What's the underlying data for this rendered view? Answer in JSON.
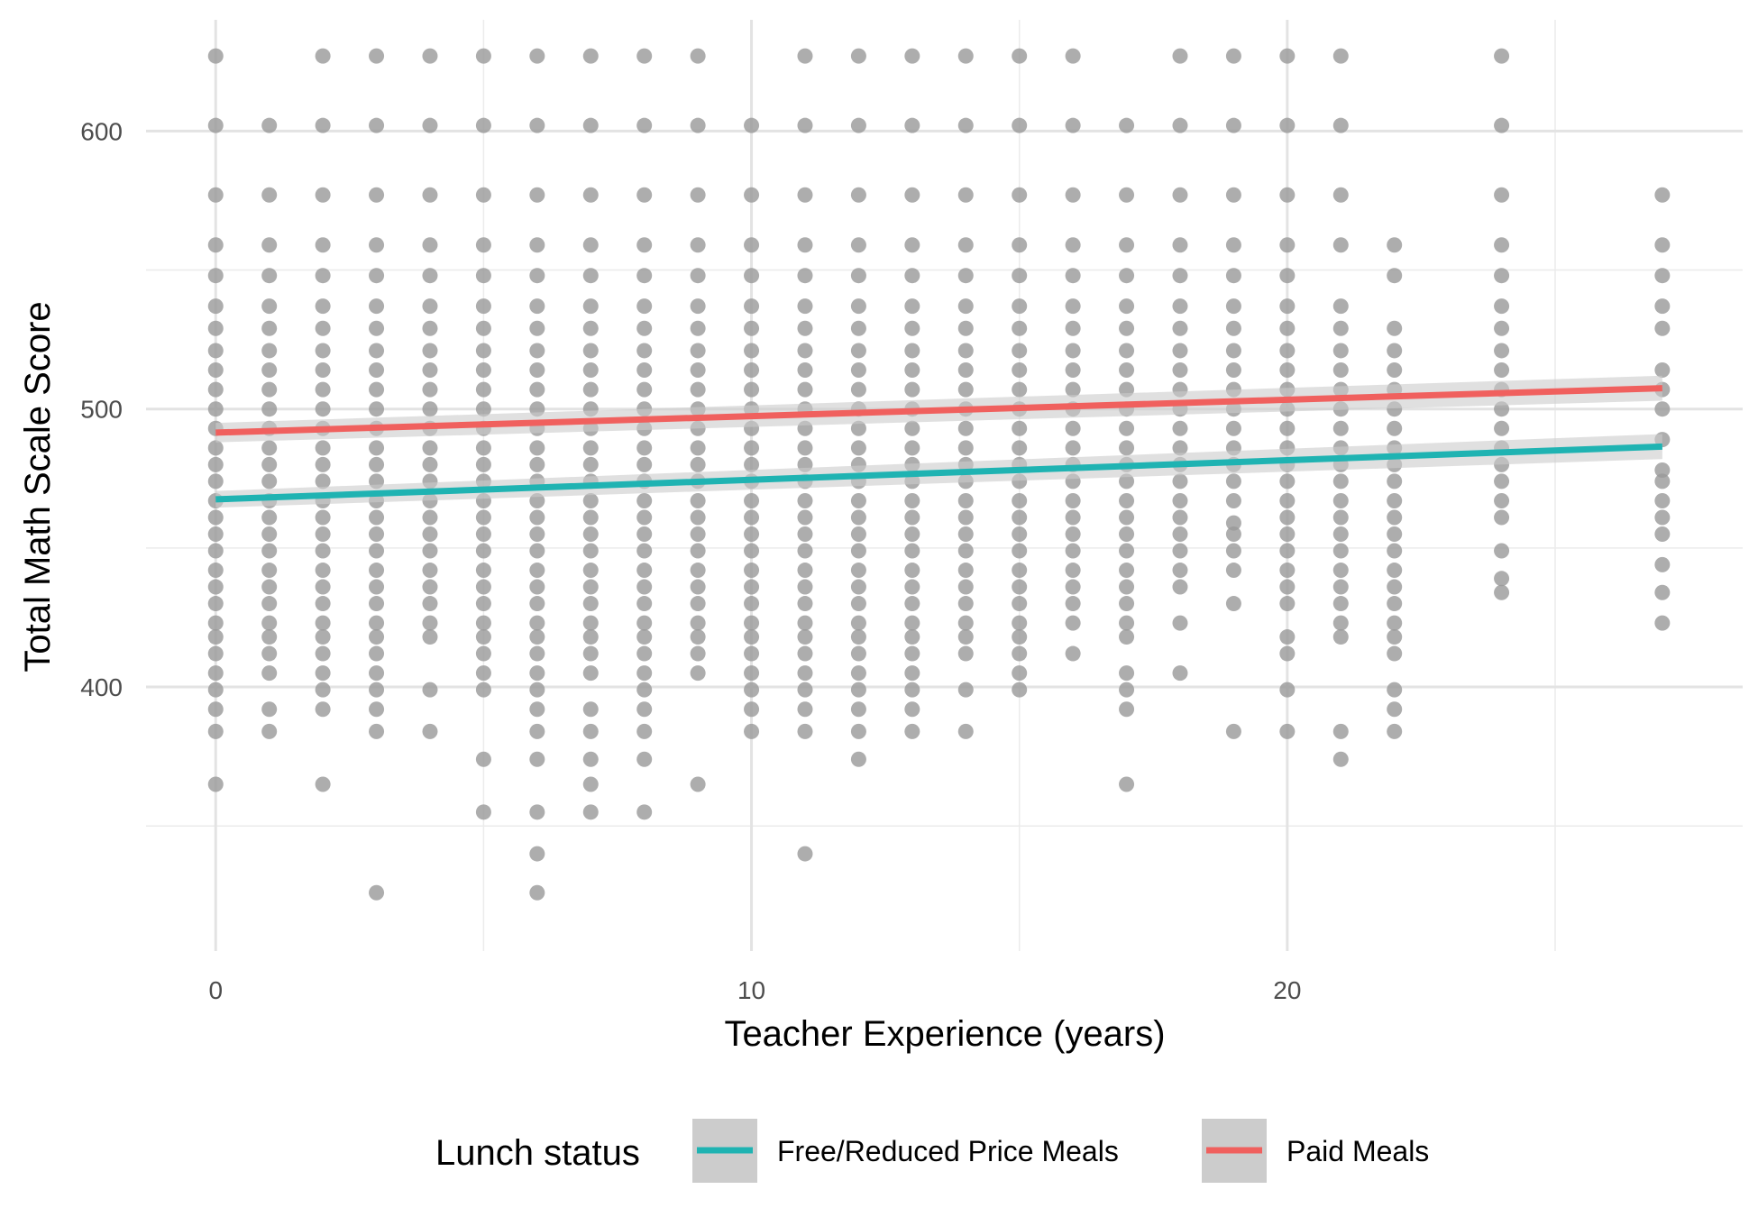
{
  "chart_data": {
    "type": "scatter",
    "title": "",
    "xlabel": "Teacher Experience (years)",
    "ylabel": "Total Math Scale Score",
    "xlim": [
      -1.3,
      28.5
    ],
    "ylim": [
      305,
      640
    ],
    "x_ticks": [
      0,
      10,
      20
    ],
    "y_ticks": [
      400,
      500,
      600
    ],
    "x_minor_ticks": [
      5,
      15,
      25
    ],
    "y_minor_ticks": [
      350,
      450,
      550
    ],
    "grid": true,
    "legend_title": "Lunch status",
    "legend_position": "bottom",
    "point_color": "#999999",
    "band_color": "#cccccc",
    "series": [
      {
        "name": "Free/Reduced Price Meals",
        "color": "#1fb3b2",
        "x": [
          0,
          27
        ],
        "y": [
          467.5,
          486.5
        ],
        "ci_lower": [
          464.5,
          482
        ],
        "ci_upper": [
          470.5,
          491
        ]
      },
      {
        "name": "Paid Meals",
        "color": "#f0605e",
        "x": [
          0,
          27
        ],
        "y": [
          491.5,
          507.5
        ],
        "ci_lower": [
          488,
          503
        ],
        "ci_upper": [
          495,
          512
        ]
      }
    ],
    "points_x": [
      0,
      1,
      2,
      3,
      4,
      5,
      6,
      7,
      8,
      9,
      10,
      11,
      12,
      13,
      14,
      15,
      16,
      17,
      18,
      19,
      20,
      21,
      22,
      24,
      27
    ],
    "points_y": [
      [
        627,
        602,
        577,
        559,
        548,
        537,
        529,
        521,
        514,
        507,
        500,
        493,
        486,
        480,
        474,
        467,
        461,
        455,
        449,
        442,
        436,
        430,
        423,
        418,
        412,
        405,
        399,
        392,
        384,
        365
      ],
      [
        602,
        577,
        559,
        548,
        537,
        529,
        521,
        514,
        507,
        500,
        493,
        486,
        480,
        474,
        467,
        461,
        455,
        449,
        442,
        436,
        430,
        423,
        418,
        412,
        405,
        392,
        384
      ],
      [
        627,
        602,
        577,
        559,
        548,
        537,
        529,
        521,
        514,
        507,
        500,
        493,
        486,
        480,
        474,
        467,
        461,
        455,
        449,
        442,
        436,
        430,
        423,
        418,
        412,
        405,
        399,
        392,
        365
      ],
      [
        627,
        602,
        577,
        559,
        548,
        537,
        529,
        521,
        514,
        507,
        500,
        493,
        486,
        480,
        474,
        467,
        461,
        455,
        449,
        442,
        436,
        430,
        423,
        418,
        412,
        405,
        399,
        392,
        384,
        326
      ],
      [
        627,
        602,
        577,
        559,
        548,
        537,
        529,
        521,
        514,
        507,
        500,
        493,
        486,
        480,
        474,
        467,
        461,
        455,
        449,
        442,
        436,
        430,
        423,
        418,
        399,
        384
      ],
      [
        627,
        602,
        577,
        559,
        548,
        537,
        529,
        521,
        514,
        507,
        500,
        493,
        486,
        480,
        474,
        467,
        461,
        455,
        449,
        442,
        436,
        430,
        423,
        418,
        412,
        405,
        399,
        374,
        355
      ],
      [
        627,
        602,
        577,
        559,
        548,
        537,
        529,
        521,
        514,
        507,
        500,
        493,
        486,
        480,
        474,
        467,
        461,
        455,
        449,
        442,
        436,
        430,
        423,
        418,
        412,
        405,
        399,
        392,
        384,
        374,
        355,
        340,
        326
      ],
      [
        627,
        602,
        577,
        559,
        548,
        537,
        529,
        521,
        514,
        507,
        500,
        493,
        486,
        480,
        474,
        467,
        461,
        455,
        449,
        442,
        436,
        430,
        423,
        418,
        412,
        405,
        392,
        384,
        374,
        365,
        355
      ],
      [
        627,
        602,
        577,
        559,
        548,
        537,
        529,
        521,
        514,
        507,
        500,
        493,
        486,
        480,
        474,
        467,
        461,
        455,
        449,
        442,
        436,
        430,
        423,
        418,
        412,
        405,
        399,
        392,
        384,
        374,
        355
      ],
      [
        627,
        602,
        577,
        559,
        548,
        537,
        529,
        521,
        514,
        507,
        500,
        493,
        486,
        480,
        474,
        467,
        461,
        455,
        449,
        442,
        436,
        430,
        423,
        418,
        412,
        405,
        365
      ],
      [
        602,
        577,
        559,
        548,
        537,
        529,
        521,
        514,
        507,
        500,
        493,
        486,
        480,
        474,
        467,
        461,
        455,
        449,
        442,
        436,
        430,
        423,
        418,
        412,
        405,
        399,
        392,
        384
      ],
      [
        627,
        602,
        577,
        559,
        548,
        537,
        529,
        521,
        514,
        507,
        500,
        493,
        486,
        480,
        474,
        467,
        461,
        455,
        449,
        442,
        436,
        430,
        423,
        418,
        412,
        405,
        399,
        392,
        384,
        340
      ],
      [
        627,
        602,
        577,
        559,
        548,
        537,
        529,
        521,
        514,
        507,
        500,
        493,
        486,
        480,
        474,
        467,
        461,
        455,
        449,
        442,
        436,
        430,
        423,
        418,
        412,
        405,
        399,
        392,
        384,
        374
      ],
      [
        627,
        602,
        577,
        559,
        548,
        537,
        529,
        521,
        514,
        507,
        500,
        493,
        486,
        480,
        474,
        467,
        461,
        455,
        449,
        442,
        436,
        430,
        423,
        418,
        412,
        405,
        399,
        392,
        384
      ],
      [
        627,
        602,
        577,
        559,
        548,
        537,
        529,
        521,
        514,
        507,
        500,
        493,
        486,
        480,
        474,
        467,
        461,
        455,
        449,
        442,
        436,
        430,
        423,
        418,
        412,
        399,
        384
      ],
      [
        627,
        602,
        577,
        559,
        548,
        537,
        529,
        521,
        514,
        507,
        500,
        493,
        486,
        480,
        474,
        467,
        461,
        455,
        449,
        442,
        436,
        430,
        423,
        418,
        412,
        405,
        399
      ],
      [
        627,
        602,
        577,
        559,
        548,
        537,
        529,
        521,
        514,
        507,
        500,
        493,
        486,
        480,
        474,
        467,
        461,
        455,
        449,
        442,
        436,
        430,
        423,
        412
      ],
      [
        602,
        577,
        559,
        548,
        537,
        529,
        521,
        514,
        507,
        500,
        493,
        486,
        480,
        474,
        467,
        461,
        455,
        449,
        442,
        436,
        430,
        423,
        418,
        405,
        399,
        392,
        365
      ],
      [
        627,
        602,
        577,
        559,
        548,
        537,
        529,
        521,
        514,
        507,
        500,
        493,
        486,
        480,
        474,
        467,
        461,
        455,
        449,
        442,
        436,
        423,
        405
      ],
      [
        627,
        602,
        577,
        559,
        548,
        537,
        529,
        521,
        514,
        507,
        500,
        493,
        486,
        480,
        474,
        467,
        459,
        455,
        449,
        442,
        430,
        384
      ],
      [
        627,
        602,
        577,
        559,
        548,
        537,
        529,
        521,
        514,
        507,
        500,
        493,
        486,
        480,
        474,
        467,
        461,
        455,
        449,
        442,
        436,
        430,
        418,
        412,
        399,
        384
      ],
      [
        627,
        602,
        577,
        559,
        537,
        529,
        521,
        514,
        507,
        500,
        493,
        486,
        480,
        474,
        467,
        461,
        455,
        449,
        442,
        436,
        430,
        423,
        418,
        384,
        374
      ],
      [
        559,
        548,
        529,
        521,
        514,
        507,
        500,
        493,
        486,
        480,
        474,
        467,
        461,
        455,
        449,
        442,
        436,
        430,
        423,
        418,
        412,
        399,
        392,
        384
      ],
      [
        627,
        602,
        577,
        559,
        548,
        537,
        529,
        521,
        514,
        507,
        500,
        493,
        486,
        480,
        474,
        467,
        461,
        449,
        439,
        434
      ],
      [
        577,
        559,
        548,
        537,
        529,
        514,
        507,
        500,
        489,
        478,
        474,
        467,
        461,
        455,
        444,
        434,
        423
      ]
    ]
  },
  "legend": {
    "title": "Lunch status",
    "items": [
      {
        "label": "Free/Reduced Price Meals",
        "color": "#1fb3b2"
      },
      {
        "label": "Paid Meals",
        "color": "#f0605e"
      }
    ]
  }
}
